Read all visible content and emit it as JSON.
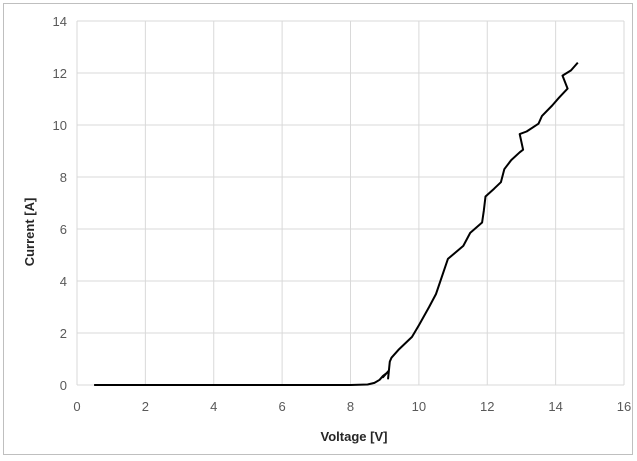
{
  "chart_data": {
    "type": "line",
    "title": "",
    "xlabel": "Voltage [V]",
    "ylabel": "Current [A]",
    "xlim": [
      0,
      16
    ],
    "ylim": [
      0,
      14
    ],
    "xticks": [
      0,
      2,
      4,
      6,
      8,
      10,
      12,
      14,
      16
    ],
    "yticks": [
      0,
      2,
      4,
      6,
      8,
      10,
      12,
      14
    ],
    "grid": true,
    "legend": "none",
    "line_color": "#000000",
    "grid_color": "#d9d9d9",
    "series": [
      {
        "x": [
          0.5,
          8.0,
          8.5,
          8.7,
          8.85,
          8.95,
          9.05,
          8.95,
          9.12,
          9.1,
          9.15,
          9.2,
          9.4,
          9.8,
          10.0,
          10.3,
          10.5,
          10.85,
          11.3,
          11.5,
          11.85,
          11.9,
          11.95,
          12.2,
          12.4,
          12.5,
          12.7,
          12.95,
          13.05,
          12.95,
          13.15,
          13.5,
          13.6,
          13.9,
          14.1,
          14.35,
          14.2,
          14.45,
          14.65
        ],
        "y": [
          0.0,
          0.0,
          0.02,
          0.08,
          0.2,
          0.35,
          0.45,
          0.3,
          0.55,
          0.25,
          0.9,
          1.05,
          1.35,
          1.85,
          2.3,
          3.0,
          3.5,
          4.85,
          5.35,
          5.85,
          6.25,
          6.7,
          7.25,
          7.55,
          7.8,
          8.3,
          8.65,
          8.95,
          9.05,
          9.65,
          9.75,
          10.05,
          10.35,
          10.75,
          11.05,
          11.4,
          11.9,
          12.1,
          12.4
        ]
      }
    ]
  }
}
